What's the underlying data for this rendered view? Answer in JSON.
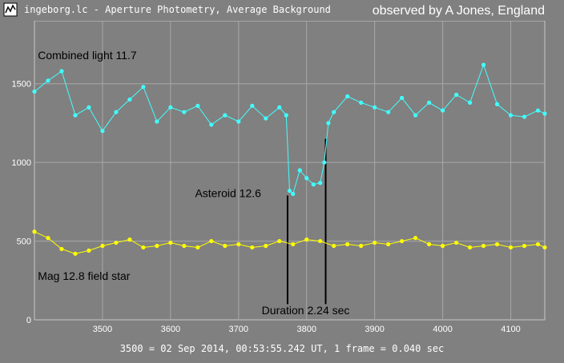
{
  "window": {
    "title": "ingeborg.lc - Aperture Photometry, Average Background",
    "observer": "observed by A Jones, England",
    "icon": "lightcurve-app-icon"
  },
  "footer": "3500 = 02 Sep 2014, 00:53:55.242 UT, 1 frame = 0.040 sec",
  "colors": {
    "background": "#808080",
    "combined": "#40ffff",
    "field_star": "#ffff00",
    "grid": "#a8a8a8"
  },
  "chart_data": {
    "type": "line",
    "xlim": [
      3400,
      4150
    ],
    "ylim": [
      0,
      1900
    ],
    "xticks": [
      3500,
      3600,
      3700,
      3800,
      3900,
      4000,
      4100
    ],
    "yticks": [
      0,
      500,
      1000,
      1500
    ],
    "grid": true,
    "annotations": [
      {
        "text": "Combined light 11.7",
        "x": 3405,
        "y": 1655
      },
      {
        "text": "Asteroid 12.6",
        "x": 3636,
        "y": 780
      },
      {
        "text": "Mag 12.8 field star",
        "x": 3405,
        "y": 255
      },
      {
        "text": "Duration 2.24 sec",
        "x": 3734,
        "y": 35
      }
    ],
    "event_markers": [
      {
        "x": 3772,
        "y_from": 100,
        "y_to": 790
      },
      {
        "x": 3828,
        "y_from": 100,
        "y_to": 1150
      }
    ],
    "series": [
      {
        "id": "combined",
        "x": [
          3400,
          3420,
          3440,
          3460,
          3480,
          3500,
          3520,
          3540,
          3560,
          3580,
          3600,
          3620,
          3640,
          3660,
          3680,
          3700,
          3720,
          3740,
          3760,
          3770,
          3775,
          3780,
          3790,
          3800,
          3810,
          3820,
          3826,
          3832,
          3840,
          3860,
          3880,
          3900,
          3920,
          3940,
          3960,
          3980,
          4000,
          4020,
          4040,
          4060,
          4080,
          4100,
          4120,
          4140,
          4150
        ],
        "values": [
          1450,
          1520,
          1580,
          1300,
          1350,
          1200,
          1320,
          1400,
          1480,
          1260,
          1350,
          1320,
          1360,
          1240,
          1300,
          1260,
          1360,
          1280,
          1350,
          1300,
          820,
          800,
          950,
          900,
          860,
          870,
          1000,
          1250,
          1320,
          1420,
          1380,
          1350,
          1320,
          1410,
          1300,
          1380,
          1330,
          1430,
          1380,
          1620,
          1370,
          1300,
          1290,
          1330,
          1310
        ]
      },
      {
        "id": "field_star",
        "x": [
          3400,
          3420,
          3440,
          3460,
          3480,
          3500,
          3520,
          3540,
          3560,
          3580,
          3600,
          3620,
          3640,
          3660,
          3680,
          3700,
          3720,
          3740,
          3760,
          3780,
          3800,
          3820,
          3840,
          3860,
          3880,
          3900,
          3920,
          3940,
          3960,
          3980,
          4000,
          4020,
          4040,
          4060,
          4080,
          4100,
          4120,
          4140,
          4150
        ],
        "values": [
          560,
          520,
          450,
          420,
          440,
          470,
          490,
          510,
          460,
          470,
          490,
          470,
          460,
          500,
          470,
          480,
          460,
          470,
          500,
          480,
          510,
          500,
          470,
          480,
          470,
          490,
          480,
          500,
          520,
          480,
          470,
          490,
          460,
          470,
          480,
          460,
          470,
          480,
          460
        ]
      }
    ]
  }
}
